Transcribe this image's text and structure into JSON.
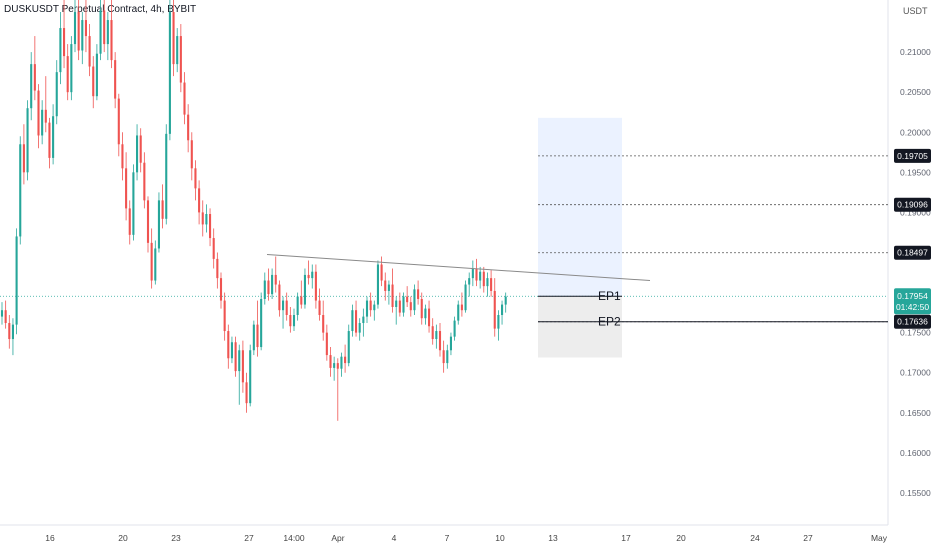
{
  "header": {
    "title": "DUSKUSDT Perpetual Contract, 4h, BYBIT",
    "currency": "USDT"
  },
  "colors": {
    "up": "#26a69a",
    "down": "#ef5350",
    "last_price_tag": "#26a69a",
    "level_tag": "#131722",
    "target_zone": "#dbe7ff",
    "stop_zone": "#e8e8e8"
  },
  "chart_data": {
    "type": "candlestick",
    "title": "DUSKUSDT Perpetual Contract, 4h, BYBIT",
    "y_ticks": [
      "0.21000",
      "0.20500",
      "0.20000",
      "0.19500",
      "0.19000",
      "0.18500",
      "0.18000",
      "0.17500",
      "0.17000",
      "0.16500",
      "0.16000",
      "0.15500"
    ],
    "x_ticks": [
      "16",
      "20",
      "23",
      "27",
      "14:00",
      "Apr",
      "4",
      "7",
      "10",
      "13",
      "17",
      "20",
      "24",
      "27",
      "May"
    ],
    "ylim": [
      0.151,
      0.2165
    ],
    "last_price": {
      "value": "0.17954",
      "countdown": "01:42:50"
    },
    "levels": [
      {
        "label": "0.19705",
        "value": 0.19705
      },
      {
        "label": "0.19096",
        "value": 0.19096
      },
      {
        "label": "0.18497",
        "value": 0.18497
      },
      {
        "label": "0.17636",
        "value": 0.17636
      }
    ],
    "entries": [
      {
        "label": "EP1",
        "value": 0.17954
      },
      {
        "label": "EP2",
        "value": 0.17636
      }
    ],
    "trendline": {
      "from": 0.18475,
      "to": 0.1815
    },
    "target_zone": {
      "from": 0.17954,
      "to": 0.2018
    },
    "stop_zone": {
      "from": 0.1719,
      "to": 0.17954
    },
    "candles": [
      [
        0.177,
        0.1788,
        0.176,
        0.1778
      ],
      [
        0.1778,
        0.179,
        0.1755,
        0.1762
      ],
      [
        0.1762,
        0.1772,
        0.173,
        0.1742
      ],
      [
        0.1742,
        0.1768,
        0.1722,
        0.176
      ],
      [
        0.176,
        0.188,
        0.1748,
        0.187
      ],
      [
        0.187,
        0.1995,
        0.186,
        0.1985
      ],
      [
        0.1985,
        0.201,
        0.1935,
        0.195
      ],
      [
        0.195,
        0.204,
        0.194,
        0.203
      ],
      [
        0.203,
        0.21,
        0.2015,
        0.2085
      ],
      [
        0.2085,
        0.212,
        0.204,
        0.2052
      ],
      [
        0.2052,
        0.206,
        0.198,
        0.1996
      ],
      [
        0.1996,
        0.204,
        0.1985,
        0.2028
      ],
      [
        0.2028,
        0.207,
        0.2,
        0.2012
      ],
      [
        0.2012,
        0.2018,
        0.1955,
        0.1968
      ],
      [
        0.1968,
        0.2035,
        0.196,
        0.202
      ],
      [
        0.202,
        0.209,
        0.201,
        0.2075
      ],
      [
        0.2075,
        0.215,
        0.206,
        0.213
      ],
      [
        0.213,
        0.2165,
        0.208,
        0.2095
      ],
      [
        0.2095,
        0.211,
        0.204,
        0.205
      ],
      [
        0.205,
        0.212,
        0.204,
        0.211
      ],
      [
        0.211,
        0.2165,
        0.21,
        0.215
      ],
      [
        0.215,
        0.2165,
        0.209,
        0.2102
      ],
      [
        0.2102,
        0.215,
        0.2085,
        0.214
      ],
      [
        0.214,
        0.2165,
        0.21,
        0.212
      ],
      [
        0.212,
        0.2135,
        0.207,
        0.2082
      ],
      [
        0.2082,
        0.2095,
        0.203,
        0.2045
      ],
      [
        0.2045,
        0.211,
        0.204,
        0.2098
      ],
      [
        0.2098,
        0.2165,
        0.209,
        0.2152
      ],
      [
        0.2152,
        0.2165,
        0.21,
        0.211
      ],
      [
        0.211,
        0.215,
        0.209,
        0.214
      ],
      [
        0.214,
        0.2165,
        0.208,
        0.209
      ],
      [
        0.209,
        0.21,
        0.203,
        0.2042
      ],
      [
        0.2042,
        0.2048,
        0.197,
        0.1985
      ],
      [
        0.1985,
        0.2,
        0.194,
        0.1955
      ],
      [
        0.1955,
        0.1975,
        0.189,
        0.1905
      ],
      [
        0.1905,
        0.1915,
        0.186,
        0.1872
      ],
      [
        0.1872,
        0.196,
        0.1865,
        0.195
      ],
      [
        0.195,
        0.201,
        0.194,
        0.1996
      ],
      [
        0.1996,
        0.2005,
        0.195,
        0.1962
      ],
      [
        0.1962,
        0.1975,
        0.1905,
        0.1915
      ],
      [
        0.1915,
        0.192,
        0.185,
        0.1862
      ],
      [
        0.1862,
        0.188,
        0.1805,
        0.1815
      ],
      [
        0.1815,
        0.1865,
        0.181,
        0.1855
      ],
      [
        0.1855,
        0.1925,
        0.185,
        0.1915
      ],
      [
        0.1915,
        0.1935,
        0.188,
        0.1892
      ],
      [
        0.1892,
        0.201,
        0.1885,
        0.1998
      ],
      [
        0.1998,
        0.2165,
        0.199,
        0.215
      ],
      [
        0.215,
        0.2165,
        0.207,
        0.2085
      ],
      [
        0.2085,
        0.213,
        0.2075,
        0.212
      ],
      [
        0.212,
        0.2135,
        0.205,
        0.2062
      ],
      [
        0.2062,
        0.2075,
        0.201,
        0.2022
      ],
      [
        0.2022,
        0.2035,
        0.1975,
        0.199
      ],
      [
        0.199,
        0.2,
        0.194,
        0.1955
      ],
      [
        0.1955,
        0.1965,
        0.1915,
        0.193
      ],
      [
        0.193,
        0.194,
        0.1885,
        0.19
      ],
      [
        0.19,
        0.1915,
        0.187,
        0.1885
      ],
      [
        0.1885,
        0.191,
        0.1875,
        0.1898
      ],
      [
        0.1898,
        0.1905,
        0.1858,
        0.1868
      ],
      [
        0.1868,
        0.188,
        0.183,
        0.1842
      ],
      [
        0.1842,
        0.185,
        0.1805,
        0.1818
      ],
      [
        0.1818,
        0.1825,
        0.178,
        0.179
      ],
      [
        0.179,
        0.18,
        0.174,
        0.1752
      ],
      [
        0.1752,
        0.176,
        0.1705,
        0.1718
      ],
      [
        0.1718,
        0.1745,
        0.1712,
        0.1738
      ],
      [
        0.1738,
        0.1745,
        0.1695,
        0.1702
      ],
      [
        0.1702,
        0.1735,
        0.166,
        0.1728
      ],
      [
        0.1728,
        0.174,
        0.1675,
        0.1688
      ],
      [
        0.1688,
        0.17,
        0.165,
        0.1662
      ],
      [
        0.1662,
        0.1735,
        0.1658,
        0.1728
      ],
      [
        0.1728,
        0.1765,
        0.1722,
        0.176
      ],
      [
        0.176,
        0.179,
        0.172,
        0.1732
      ],
      [
        0.1732,
        0.18,
        0.1728,
        0.1792
      ],
      [
        0.1792,
        0.1825,
        0.1785,
        0.1815
      ],
      [
        0.1815,
        0.183,
        0.179,
        0.1798
      ],
      [
        0.1798,
        0.183,
        0.1792,
        0.1822
      ],
      [
        0.1822,
        0.1845,
        0.18,
        0.181
      ],
      [
        0.181,
        0.1815,
        0.177,
        0.1778
      ],
      [
        0.1778,
        0.1795,
        0.1755,
        0.179
      ],
      [
        0.179,
        0.18,
        0.1765,
        0.1772
      ],
      [
        0.1772,
        0.1782,
        0.175,
        0.1758
      ],
      [
        0.1758,
        0.178,
        0.1752,
        0.1772
      ],
      [
        0.1772,
        0.18,
        0.1765,
        0.1795
      ],
      [
        0.1795,
        0.1815,
        0.178,
        0.1785
      ],
      [
        0.1785,
        0.183,
        0.178,
        0.1822
      ],
      [
        0.1822,
        0.184,
        0.181,
        0.1818
      ],
      [
        0.1818,
        0.1835,
        0.1805,
        0.1826
      ],
      [
        0.1826,
        0.1835,
        0.178,
        0.179
      ],
      [
        0.179,
        0.1805,
        0.1765,
        0.1772
      ],
      [
        0.1772,
        0.179,
        0.174,
        0.175
      ],
      [
        0.175,
        0.176,
        0.1715,
        0.1722
      ],
      [
        0.1722,
        0.1732,
        0.1695,
        0.1706
      ],
      [
        0.1706,
        0.172,
        0.169,
        0.1712
      ],
      [
        0.1712,
        0.1718,
        0.164,
        0.1705
      ],
      [
        0.1705,
        0.1725,
        0.1695,
        0.172
      ],
      [
        0.172,
        0.1735,
        0.17,
        0.1712
      ],
      [
        0.1712,
        0.176,
        0.1708,
        0.1752
      ],
      [
        0.1752,
        0.1785,
        0.1745,
        0.1778
      ],
      [
        0.1778,
        0.179,
        0.1745,
        0.175
      ],
      [
        0.175,
        0.1768,
        0.174,
        0.1762
      ],
      [
        0.1762,
        0.178,
        0.1745,
        0.177
      ],
      [
        0.177,
        0.1795,
        0.1762,
        0.179
      ],
      [
        0.179,
        0.18,
        0.177,
        0.1778
      ],
      [
        0.1778,
        0.179,
        0.1765,
        0.1785
      ],
      [
        0.1785,
        0.184,
        0.178,
        0.1835
      ],
      [
        0.1835,
        0.1845,
        0.1808,
        0.1815
      ],
      [
        0.1815,
        0.1825,
        0.179,
        0.1802
      ],
      [
        0.1802,
        0.1815,
        0.1785,
        0.181
      ],
      [
        0.181,
        0.183,
        0.1775,
        0.1782
      ],
      [
        0.1782,
        0.1795,
        0.176,
        0.179
      ],
      [
        0.179,
        0.18,
        0.177,
        0.1775
      ],
      [
        0.1775,
        0.18,
        0.177,
        0.1795
      ],
      [
        0.1795,
        0.1808,
        0.1782,
        0.1788
      ],
      [
        0.1788,
        0.1795,
        0.177,
        0.1778
      ],
      [
        0.1778,
        0.181,
        0.1772,
        0.1804
      ],
      [
        0.1804,
        0.1815,
        0.1785,
        0.1792
      ],
      [
        0.1792,
        0.18,
        0.176,
        0.1768
      ],
      [
        0.1768,
        0.1785,
        0.176,
        0.178
      ],
      [
        0.178,
        0.179,
        0.175,
        0.1758
      ],
      [
        0.1758,
        0.1768,
        0.1735,
        0.1742
      ],
      [
        0.1742,
        0.176,
        0.173,
        0.1752
      ],
      [
        0.1752,
        0.1762,
        0.172,
        0.1728
      ],
      [
        0.1728,
        0.174,
        0.17,
        0.1712
      ],
      [
        0.1712,
        0.1735,
        0.1705,
        0.1728
      ],
      [
        0.1728,
        0.175,
        0.1722,
        0.1745
      ],
      [
        0.1745,
        0.177,
        0.174,
        0.1765
      ],
      [
        0.1765,
        0.179,
        0.176,
        0.1785
      ],
      [
        0.1785,
        0.18,
        0.177,
        0.1778
      ],
      [
        0.1778,
        0.1815,
        0.1775,
        0.181
      ],
      [
        0.181,
        0.1825,
        0.1795,
        0.1818
      ],
      [
        0.1818,
        0.184,
        0.1808,
        0.183
      ],
      [
        0.183,
        0.1842,
        0.1808,
        0.1815
      ],
      [
        0.1815,
        0.1832,
        0.1805,
        0.1826
      ],
      [
        0.1826,
        0.1832,
        0.18,
        0.1808
      ],
      [
        0.1808,
        0.1825,
        0.1795,
        0.1818
      ],
      [
        0.1818,
        0.1828,
        0.1795,
        0.1802
      ],
      [
        0.1802,
        0.1818,
        0.1745,
        0.1755
      ],
      [
        0.1755,
        0.1778,
        0.174,
        0.1772
      ],
      [
        0.1772,
        0.179,
        0.176,
        0.1785
      ],
      [
        0.1785,
        0.18,
        0.1775,
        0.1795
      ]
    ]
  }
}
